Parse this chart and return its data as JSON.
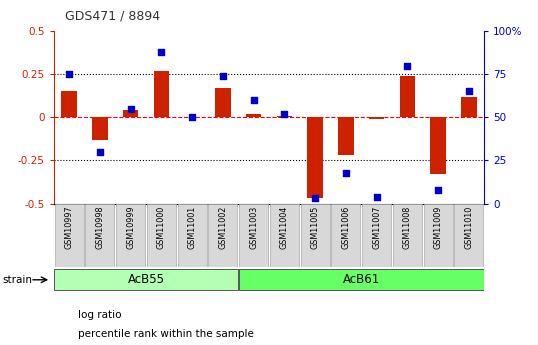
{
  "title": "GDS471 / 8894",
  "samples": [
    "GSM10997",
    "GSM10998",
    "GSM10999",
    "GSM11000",
    "GSM11001",
    "GSM11002",
    "GSM11003",
    "GSM11004",
    "GSM11005",
    "GSM11006",
    "GSM11007",
    "GSM11008",
    "GSM11009",
    "GSM11010"
  ],
  "log_ratio": [
    0.15,
    -0.13,
    0.04,
    0.27,
    0.0,
    0.17,
    0.02,
    0.01,
    -0.47,
    -0.22,
    -0.01,
    0.24,
    -0.33,
    0.12
  ],
  "percentile": [
    75,
    30,
    55,
    88,
    50,
    74,
    60,
    52,
    3,
    18,
    4,
    80,
    8,
    65
  ],
  "groups": [
    {
      "label": "AcB55",
      "start": 0,
      "end": 6,
      "color": "#b3ffb3"
    },
    {
      "label": "AcB61",
      "start": 6,
      "end": 14,
      "color": "#66ff66"
    }
  ],
  "bar_color": "#cc2200",
  "dot_color": "#0000cc",
  "ylim_left": [
    -0.5,
    0.5
  ],
  "ylim_right": [
    0,
    100
  ],
  "left_yticks": [
    0.5,
    0.25,
    0.0,
    -0.25,
    -0.5
  ],
  "left_yticklabels": [
    "0.5",
    "0.25",
    "0",
    "-0.25",
    "-0.5"
  ],
  "right_yticks": [
    100,
    75,
    50,
    25,
    0
  ],
  "right_yticklabels": [
    "100%",
    "75",
    "50",
    "25",
    "0"
  ],
  "hlines": [
    0.25,
    0.0,
    -0.25
  ],
  "title_color": "#333333",
  "left_axis_color": "#cc2200",
  "right_axis_color": "#0000cc",
  "strain_label": "strain",
  "cell_color": "#d8d8d8",
  "cell_edge_color": "#aaaaaa",
  "legend_items": [
    {
      "label": "log ratio",
      "color": "#cc2200"
    },
    {
      "label": "percentile rank within the sample",
      "color": "#0000cc"
    }
  ]
}
